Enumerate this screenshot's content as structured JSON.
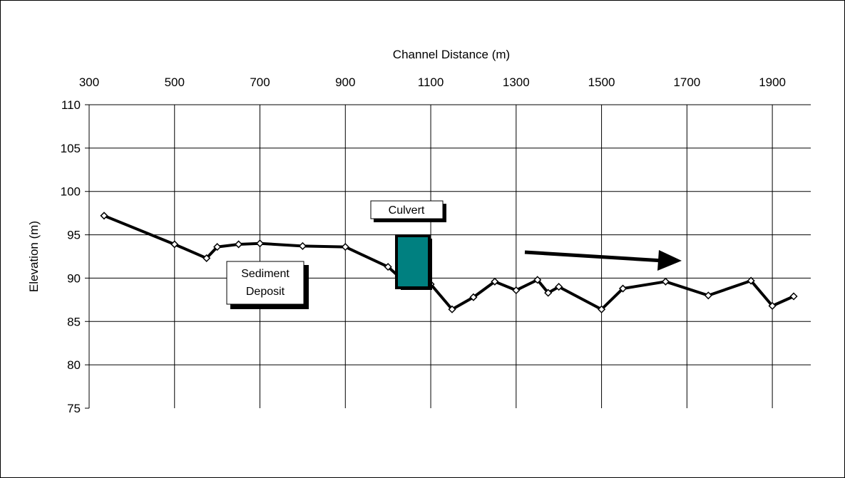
{
  "chart_data": {
    "type": "line",
    "xlabel": "Channel Distance (m)",
    "ylabel": "Elevation (m)",
    "xlim": [
      300,
      1990
    ],
    "ylim": [
      75,
      110
    ],
    "x_ticks": [
      300,
      500,
      700,
      900,
      1100,
      1300,
      1500,
      1700,
      1900
    ],
    "y_ticks": [
      75,
      80,
      85,
      90,
      95,
      100,
      105,
      110
    ],
    "x_axis_position": "top",
    "grid": true,
    "series": [
      {
        "x": [
          335,
          500,
          575,
          600,
          650,
          700,
          800,
          900,
          1000,
          1025,
          1050,
          1100,
          1150,
          1200,
          1250,
          1300,
          1350,
          1375,
          1400,
          1500,
          1550,
          1650,
          1750,
          1850,
          1900,
          1950
        ],
        "y": [
          97.2,
          93.9,
          92.3,
          93.6,
          93.9,
          94.0,
          93.7,
          93.6,
          91.3,
          90.2,
          89.6,
          89.3,
          86.4,
          87.8,
          89.6,
          88.6,
          89.8,
          88.3,
          89.0,
          86.4,
          88.8,
          89.6,
          88.0,
          89.7,
          86.8,
          87.9
        ],
        "color": "#000000"
      }
    ],
    "annotations": {
      "culvert_label": "Culvert",
      "sediment_label_line1": "Sediment",
      "sediment_label_line2": "Deposit"
    },
    "culvert_color": "#008080"
  }
}
